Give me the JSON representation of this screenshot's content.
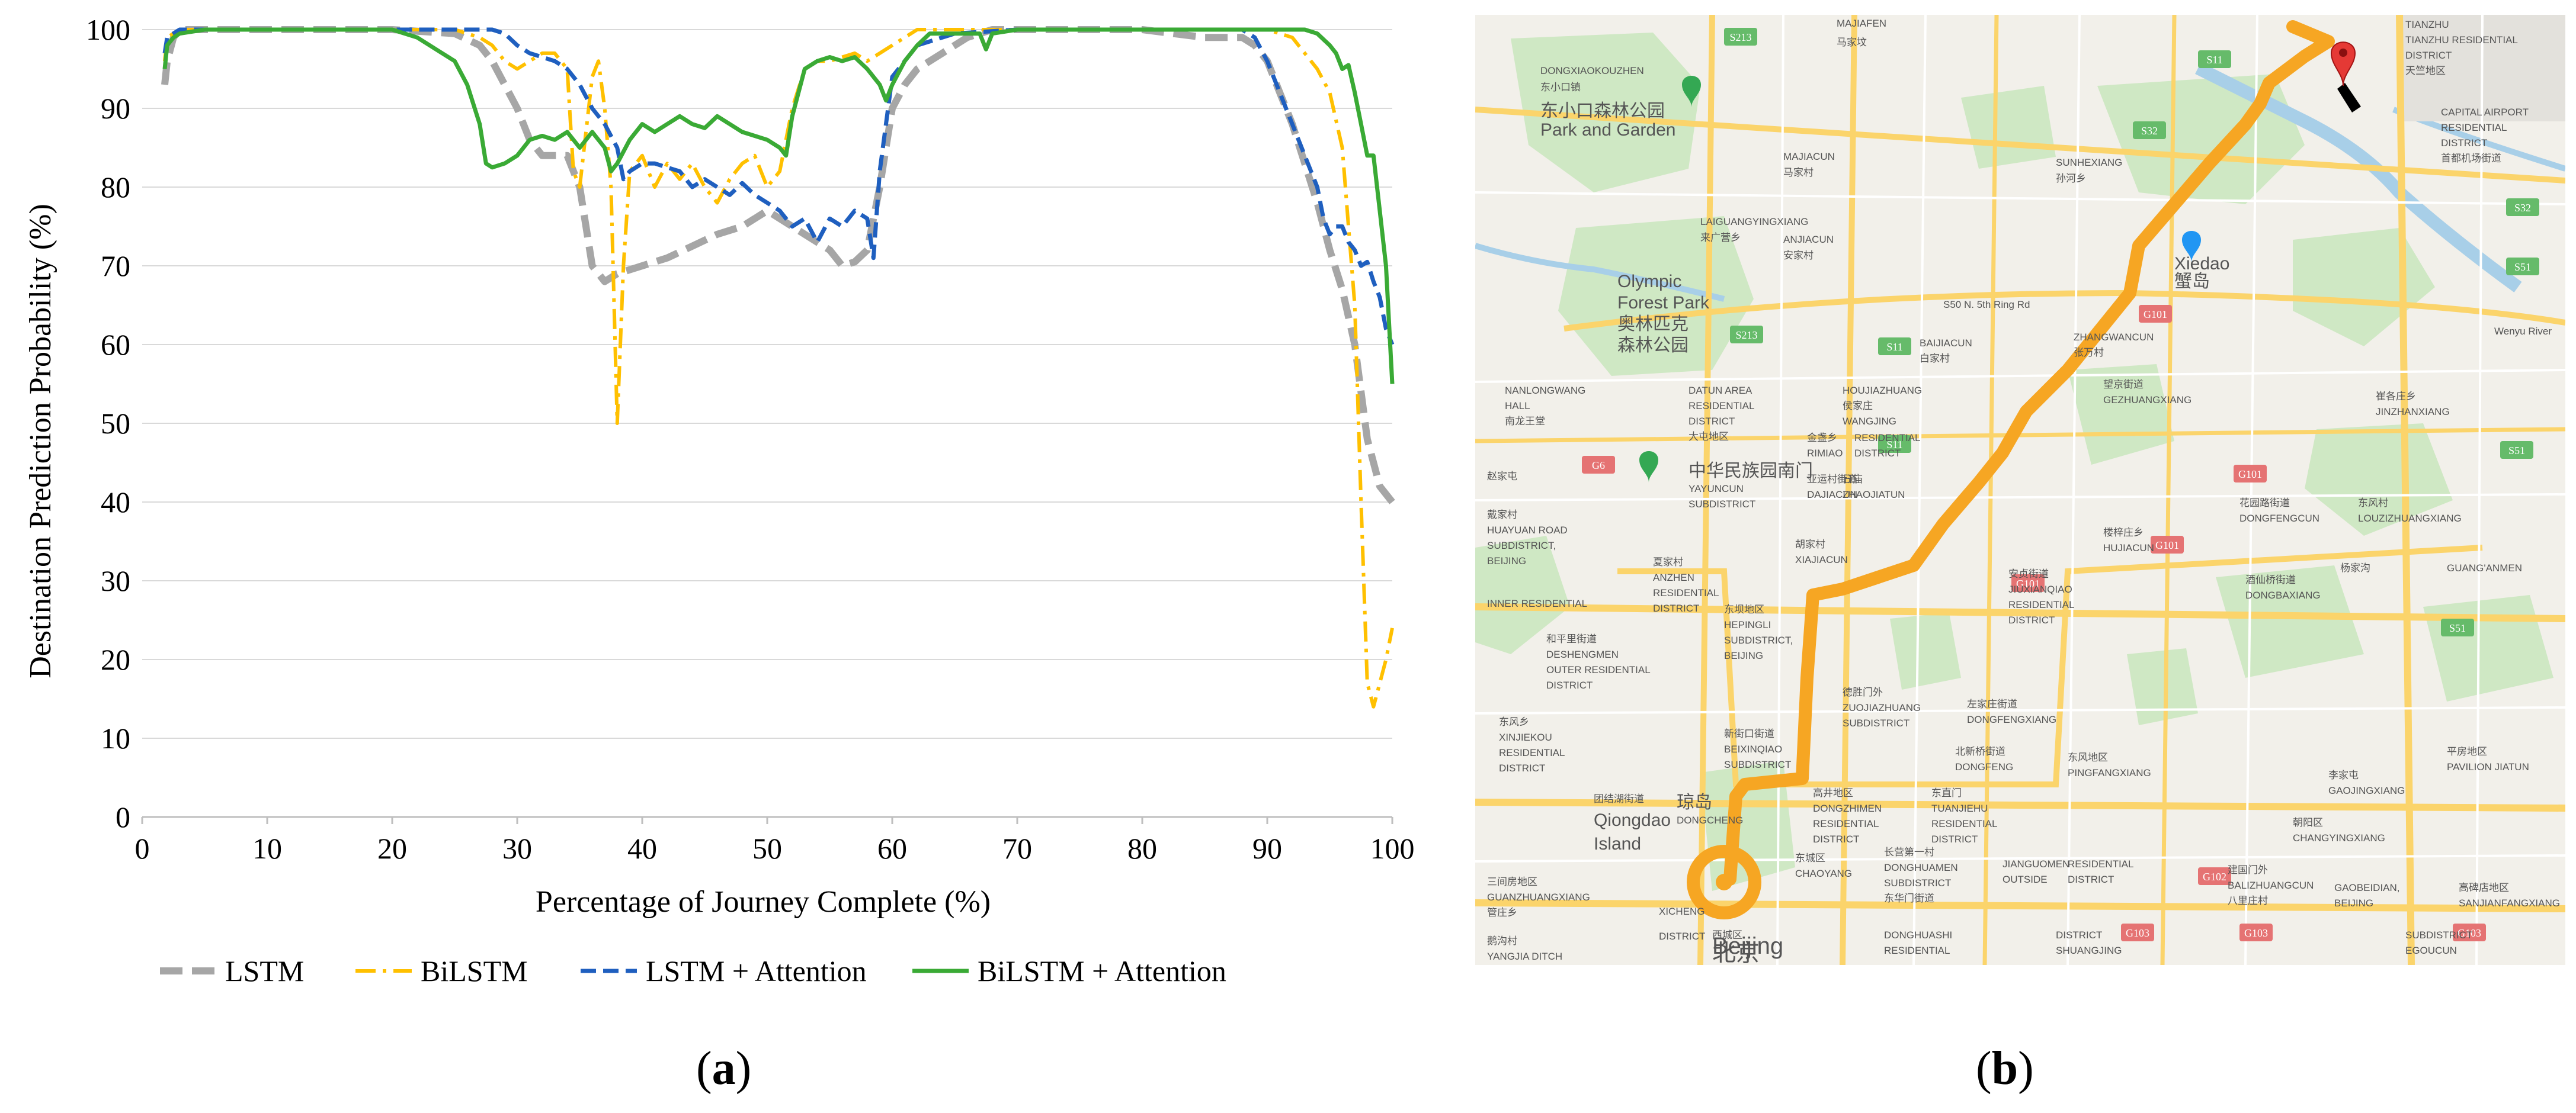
{
  "panels": {
    "a": {
      "label": "a"
    },
    "b": {
      "label": "b"
    }
  },
  "chart_data": {
    "type": "line",
    "title": "",
    "xlabel": "Percentage of Journey Complete (%)",
    "ylabel": "Destination Prediction Probability (%)",
    "xlim": [
      0,
      100
    ],
    "ylim": [
      0,
      100
    ],
    "xticks": [
      0,
      10,
      20,
      30,
      40,
      50,
      60,
      70,
      80,
      90,
      100
    ],
    "yticks": [
      0,
      10,
      20,
      30,
      40,
      50,
      60,
      70,
      80,
      90,
      100
    ],
    "grid": "horizontal",
    "legend_position": "bottom",
    "series": [
      {
        "name": "LSTM",
        "color": "#a6a6a6",
        "dash": "long-dash",
        "x": [
          1.8,
          2,
          2.5,
          3,
          5,
          10,
          20,
          25,
          27,
          28,
          30,
          31,
          32,
          33,
          34,
          35,
          36,
          37,
          38,
          39,
          40,
          42,
          44,
          46,
          48,
          50,
          52,
          54,
          55,
          56,
          57,
          58,
          59,
          60,
          61,
          62,
          63,
          64,
          65,
          66,
          68,
          70,
          80,
          85,
          88,
          89,
          90,
          91,
          92,
          93,
          94,
          95,
          96,
          97,
          98,
          99,
          100
        ],
        "y": [
          93,
          96,
          99,
          100,
          100,
          100,
          100,
          99.5,
          98,
          96,
          90,
          86,
          84,
          84,
          84,
          80,
          70,
          68,
          69,
          69.5,
          70,
          71,
          72.5,
          74,
          75,
          77,
          75,
          73,
          72,
          70,
          70.5,
          72,
          80,
          90,
          93,
          95,
          96,
          97,
          98,
          99,
          100,
          100,
          100,
          99,
          99,
          98,
          96,
          92,
          88,
          83,
          78,
          72,
          67,
          60,
          48,
          42,
          40
        ]
      },
      {
        "name": "BiLSTM",
        "color": "#ffc000",
        "dash": "dash-dot",
        "x": [
          1.8,
          2,
          3,
          5,
          10,
          20,
          25,
          27,
          28,
          29,
          30,
          31,
          32,
          33,
          34,
          34.5,
          35,
          36,
          36.5,
          37,
          37.5,
          38,
          38.5,
          39,
          40,
          41,
          42,
          43,
          44,
          45,
          46,
          47,
          48,
          49,
          50,
          51,
          52,
          53,
          54,
          55,
          56,
          57,
          58,
          59,
          60,
          61,
          62,
          65,
          70,
          80,
          90,
          92,
          93,
          94,
          95,
          96,
          96.5,
          97,
          97.5,
          98,
          98.5,
          99,
          99.5,
          100
        ],
        "y": [
          96,
          99,
          100,
          100,
          100,
          100,
          100,
          99,
          98,
          96,
          95,
          96,
          97,
          97,
          95,
          82,
          80,
          94,
          96,
          90,
          80,
          50,
          70,
          82,
          84,
          80,
          83,
          81,
          83,
          80,
          78,
          81,
          83,
          84,
          80,
          82,
          90,
          95,
          96,
          96,
          96.5,
          97,
          96,
          97,
          98,
          99,
          100,
          100,
          100,
          100,
          100,
          99,
          97,
          95,
          92,
          85,
          75,
          65,
          40,
          17,
          14,
          17,
          20,
          24
        ]
      },
      {
        "name": "LSTM + Attention",
        "color": "#1f5fbf",
        "dash": "dash",
        "x": [
          1.8,
          2,
          3,
          5,
          10,
          20,
          25,
          28,
          29,
          30,
          31,
          32,
          33,
          34,
          35,
          36,
          37,
          38,
          38.5,
          39,
          40,
          41,
          42,
          43,
          44,
          45,
          46,
          47,
          48,
          49,
          50,
          51,
          52,
          53,
          54,
          55,
          56,
          57,
          58,
          58.5,
          59,
          60,
          61,
          62,
          65,
          70,
          80,
          88,
          89,
          90,
          91,
          92,
          93,
          94,
          94.5,
          95,
          95.5,
          96,
          96.5,
          97,
          97.5,
          98,
          98.5,
          99,
          99.5,
          100
        ],
        "y": [
          97,
          99,
          100,
          100,
          100,
          100,
          100,
          100,
          99.5,
          98,
          97,
          96.5,
          96,
          95,
          93,
          90,
          88,
          85,
          81,
          82,
          83,
          83,
          82.5,
          82,
          80,
          81,
          80,
          79,
          80.5,
          79,
          78,
          77,
          75,
          76,
          73,
          76,
          75,
          77,
          76,
          71,
          82,
          94,
          96,
          98,
          99.5,
          100,
          100,
          100,
          99,
          96,
          92,
          88,
          84,
          80,
          76,
          74,
          75,
          75,
          73,
          72,
          70,
          70.5,
          68,
          66,
          62,
          60
        ]
      },
      {
        "name": "BiLSTM + Attention",
        "color": "#3aaa35",
        "dash": "solid",
        "x": [
          1.8,
          2,
          2.5,
          3,
          5,
          10,
          20,
          22,
          24,
          25,
          26,
          27,
          27.5,
          28,
          29,
          30,
          31,
          32,
          33,
          34,
          35,
          36,
          37,
          37.5,
          38,
          39,
          40,
          41,
          42,
          43,
          44,
          45,
          46,
          47,
          48,
          49,
          50,
          51,
          51.5,
          52,
          53,
          54,
          55,
          56,
          57,
          58,
          59,
          59.5,
          60,
          61,
          62,
          63,
          65,
          67,
          67.5,
          68,
          70,
          80,
          90,
          93,
          94,
          95,
          95.5,
          96,
          96.5,
          97,
          97.5,
          98,
          98.5,
          99,
          99.5,
          100
        ],
        "y": [
          95,
          98,
          99,
          99.5,
          100,
          100,
          100,
          99,
          97,
          96,
          93,
          88,
          83,
          82.5,
          83,
          84,
          86,
          86.5,
          86,
          87,
          85,
          87,
          85,
          82,
          83,
          86,
          88,
          87,
          88,
          89,
          88,
          87.5,
          89,
          88,
          87,
          86.5,
          86,
          85,
          84,
          89,
          95,
          96,
          96.5,
          96,
          96.5,
          95,
          93,
          91,
          93,
          96,
          98,
          99.5,
          99.5,
          99.5,
          97.5,
          99.5,
          100,
          100,
          100,
          100,
          99.5,
          98,
          97,
          95,
          95.5,
          92,
          88,
          84,
          84,
          77,
          70,
          55
        ]
      }
    ]
  },
  "map": {
    "background_color": "#f2f0ea",
    "route_color": "#f6a623",
    "marker_color": "#e53935",
    "labels": [
      "MAJIAFEN",
      "马家坟",
      "TIANZHU",
      "TIANZHU RESIDENTIAL",
      "DISTRICT",
      "天竺地区",
      "DONGXIAOKOUZHEN",
      "东小口镇",
      "东小口森林公园",
      "Park and Garden",
      "MAJIACUN",
      "马家村",
      "SUNHEXIANG",
      "孙河乡",
      "CAPITAL AIRPORT",
      "RESIDENTIAL",
      "DISTRICT",
      "首都机场街道",
      "LAIGUANGYINGXIANG",
      "来广营乡",
      "ANJIACUN",
      "安家村",
      "Olympic",
      "Forest Park",
      "奥林匹克",
      "森林公园",
      "Xiedao",
      "蟹岛",
      "Wenyu River",
      "S50 N. 5th Ring Rd",
      "BAIJIACUN",
      "白家村",
      "ZHANGWANCUN",
      "张万村",
      "NANLONGWANG",
      "HALL",
      "南龙王堂",
      "DATUN AREA",
      "RESIDENTIAL",
      "DISTRICT",
      "大屯地区",
      "HOUJIAZHUANG",
      "侯家庄",
      "WANGJING",
      "RESIDENTIAL",
      "DISTRICT",
      "望京街道",
      "GEZHUANGXIANG",
      "崔各庄乡",
      "JINZHANXIANG",
      "金盏乡",
      "RIMIAO",
      "日庙",
      "ZHAOJIATUN",
      "赵家屯",
      "中华民族园南门",
      "YAYUNCUN",
      "SUBDISTRICT",
      "亚运村街道",
      "DAJIACUN",
      "戴家村",
      "HUAYUAN ROAD",
      "SUBDISTRICT,",
      "BEIJING",
      "花园路街道",
      "DONGFENGCUN",
      "东风村",
      "LOUZIZHUANGXIANG",
      "楼梓庄乡",
      "HUJIACUN",
      "胡家村",
      "XIAJIACUN",
      "夏家村",
      "ANZHEN",
      "RESIDENTIAL",
      "DISTRICT",
      "安贞街道",
      "JIUXIANQIAO",
      "RESIDENTIAL",
      "DISTRICT",
      "酒仙桥街道",
      "DONGBAXIANG",
      "东坝地区",
      "HEPINGLI",
      "SUBDISTRICT,",
      "BEIJING",
      "和平里街道",
      "DESHENGMEN",
      "OUTER RESIDENTIAL",
      "DISTRICT",
      "德胜门外",
      "ZUOJIAZHUANG",
      "SUBDISTRICT",
      "左家庄街道",
      "DONGFENGXIANG",
      "东风乡",
      "XINJIEKOU",
      "RESIDENTIAL",
      "DISTRICT",
      "新街口街道",
      "BEIXINQIAO",
      "SUBDISTRICT",
      "北新桥街道",
      "DONGFENG",
      "东风地区",
      "PINGFANGXIANG",
      "平房地区",
      "PAVILION JIATUN",
      "李家屯",
      "GAOJINGXIANG",
      "高井地区",
      "DONGZHIMEN",
      "RESIDENTIAL",
      "DISTRICT",
      "东直门",
      "TUANJIEHU",
      "RESIDENTIAL",
      "DISTRICT",
      "团结湖街道",
      "Qiongdao",
      "Island",
      "琼岛",
      "DONGCHENG",
      "东城区",
      "CHAOYANG",
      "朝阳区",
      "CHANGYINGXIANG",
      "长营第一村",
      "DONGHUAMEN",
      "SUBDISTRICT",
      "东华门街道",
      "JIANGUOMEN",
      "OUTSIDE",
      "RESIDENTIAL",
      "DISTRICT",
      "建国门外",
      "BALIZHUANGCUN",
      "八里庄村",
      "GAOBEIDIAN,",
      "BEIJING",
      "高碑店地区",
      "SANJIANFANGXIANG",
      "三间房地区",
      "GUANZHUANGXIANG",
      "管庄乡",
      "XICHENG",
      "DISTRICT",
      "西城区",
      "Beijing",
      "北京",
      "DONGHUASHI",
      "RESIDENTIAL",
      "DISTRICT",
      "SHUANGJING",
      "SUBDISTRICT",
      "EGOUCUN",
      "鹅沟村",
      "YANGJIA DITCH",
      "杨家沟",
      "GUANG'ANMEN",
      "INNER RESIDENTIAL"
    ],
    "roads": [
      "S213",
      "S11",
      "S32",
      "S32",
      "S51",
      "S51",
      "S51",
      "S11",
      "S11",
      "G6",
      "G101",
      "G101",
      "G101",
      "G101",
      "G102",
      "G103",
      "G103",
      "G103",
      "S213"
    ]
  }
}
